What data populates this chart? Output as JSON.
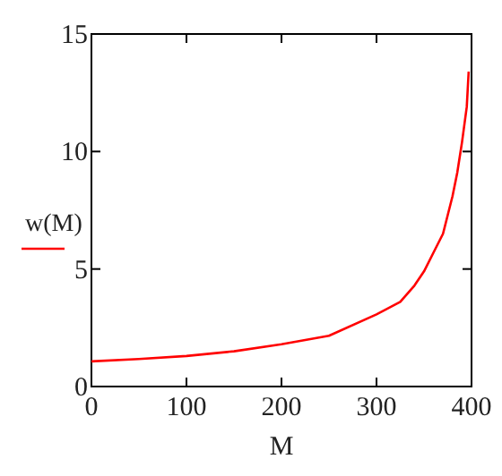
{
  "chart_data": {
    "type": "line",
    "xlabel": "M",
    "x": [
      0,
      50,
      100,
      150,
      200,
      250,
      300,
      325,
      340,
      350,
      360,
      370,
      375,
      380,
      385,
      390,
      395,
      397
    ],
    "series": [
      {
        "name": "w(M)",
        "color": "#ff0000",
        "values": [
          1.07,
          1.17,
          1.3,
          1.5,
          1.8,
          2.16,
          3.07,
          3.6,
          4.3,
          4.9,
          5.7,
          6.5,
          7.3,
          8.1,
          9.1,
          10.4,
          11.9,
          13.4
        ]
      }
    ],
    "xlim": [
      0,
      400
    ],
    "xticks": [
      0,
      100,
      200,
      300,
      400
    ],
    "ylim": [
      0,
      15
    ],
    "yticks": [
      0,
      5,
      10,
      15
    ],
    "grid": false,
    "legend": "left",
    "line_style": "solid",
    "marker": "none"
  }
}
